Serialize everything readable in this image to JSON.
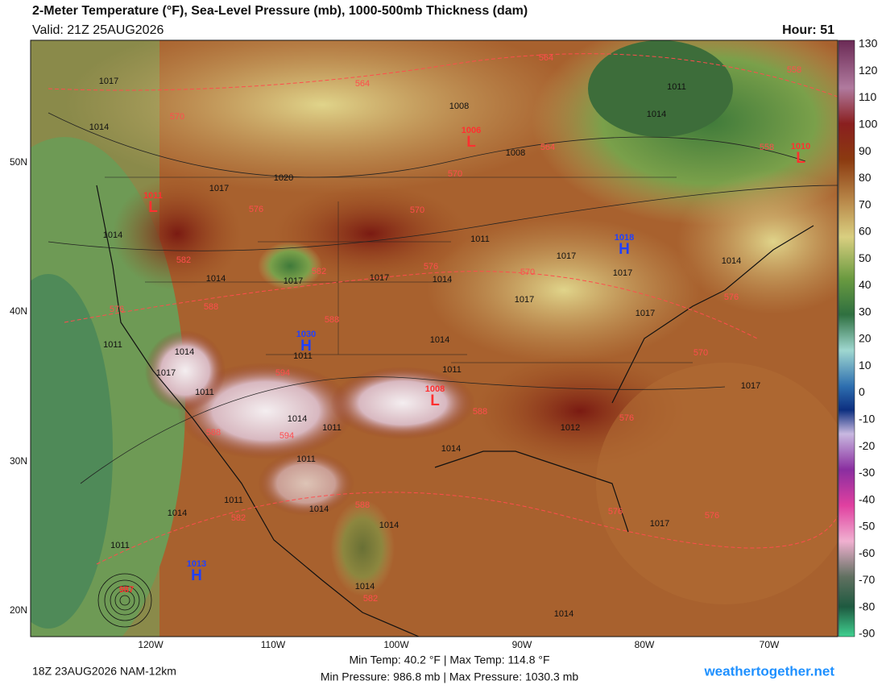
{
  "header": {
    "title": "2-Meter Temperature (°F), Sea-Level Pressure (mb), 1000-500mb Thickness (dam)",
    "valid": "Valid: 21Z 25AUG2026",
    "hour": "Hour: 51"
  },
  "latitude_labels": [
    "50N",
    "40N",
    "30N",
    "20N"
  ],
  "longitude_labels": [
    "120W",
    "110W",
    "100W",
    "90W",
    "80W",
    "70W"
  ],
  "colorbar": {
    "labels": [
      "130",
      "120",
      "110",
      "100",
      "90",
      "80",
      "70",
      "60",
      "50",
      "40",
      "30",
      "20",
      "10",
      "0",
      "-10",
      "-20",
      "-30",
      "-40",
      "-50",
      "-60",
      "-70",
      "-80",
      "-90"
    ]
  },
  "pressure_labels": [
    "1017",
    "1014",
    "1008",
    "1008",
    "1011",
    "1014",
    "1020",
    "1017",
    "1014",
    "1011",
    "1017",
    "1014",
    "1017",
    "1014",
    "1017",
    "1014",
    "1017",
    "1017",
    "1017",
    "1014",
    "1011",
    "1014",
    "1017",
    "1011",
    "1011",
    "1017",
    "1014",
    "1011",
    "1012",
    "1014",
    "1011",
    "1011",
    "1014",
    "1014",
    "1014",
    "1017",
    "1011",
    "1014",
    "1014",
    "1011"
  ],
  "thickness_labels": [
    "564",
    "558",
    "564",
    "570",
    "564",
    "558",
    "570",
    "576",
    "570",
    "582",
    "582",
    "576",
    "570",
    "576",
    "588",
    "588",
    "570",
    "576",
    "594",
    "588",
    "594",
    "588",
    "582",
    "588",
    "576",
    "576",
    "576",
    "582"
  ],
  "centers": [
    {
      "value": "1006",
      "symbol": "L"
    },
    {
      "value": "1010",
      "symbol": "L"
    },
    {
      "value": "1011",
      "symbol": "L"
    },
    {
      "value": "1018",
      "symbol": "H"
    },
    {
      "value": "1030",
      "symbol": "H"
    },
    {
      "value": "1008",
      "symbol": "L"
    },
    {
      "value": "1013",
      "symbol": "H"
    },
    {
      "value": "987",
      "symbol": ""
    }
  ],
  "footer": {
    "run": "18Z 23AUG2026 NAM-12km",
    "temps": "Min Temp: 40.2 °F | Max Temp: 114.8 °F",
    "pressures": "Min Pressure: 986.8 mb | Max Pressure: 1030.3 mb",
    "site": "weathertogether.net"
  }
}
